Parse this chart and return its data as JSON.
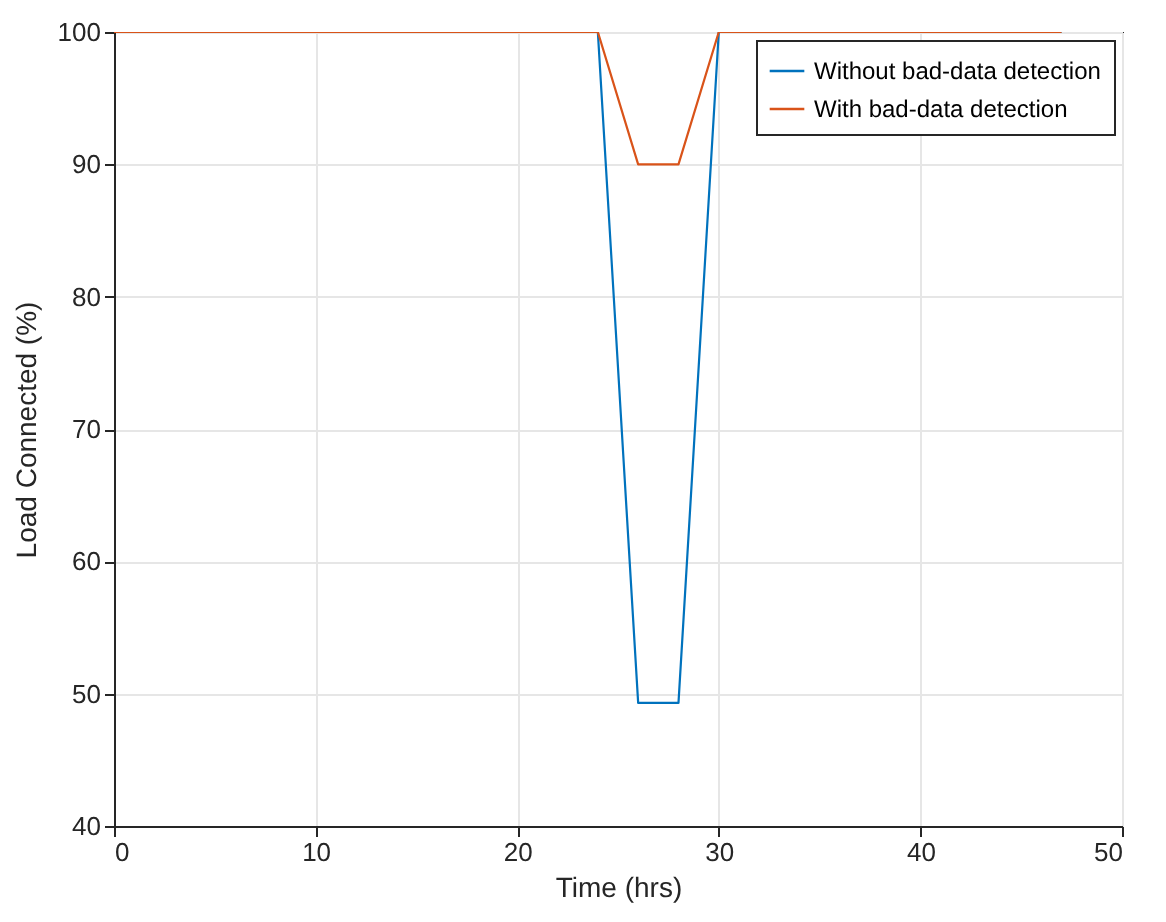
{
  "chart_data": {
    "type": "line",
    "xlabel": "Time (hrs)",
    "ylabel": "Load Connected (%)",
    "xlim": [
      0,
      50
    ],
    "ylim": [
      40,
      100
    ],
    "xticks": [
      0,
      10,
      20,
      30,
      40,
      50
    ],
    "yticks": [
      40,
      50,
      60,
      70,
      80,
      90,
      100
    ],
    "grid": true,
    "legend": "top right",
    "line_style": "solid",
    "marker": "none",
    "series": [
      {
        "name": "Without bad-data detection",
        "color": "#0072bd",
        "x": [
          0,
          24,
          26,
          28,
          30,
          47
        ],
        "values": [
          100,
          100,
          49.3,
          49.3,
          100,
          100
        ]
      },
      {
        "name": "With bad-data detection",
        "color": "#d95319",
        "x": [
          0,
          24,
          26,
          28,
          30,
          47
        ],
        "values": [
          100,
          100,
          90,
          90,
          100,
          100
        ]
      }
    ]
  }
}
